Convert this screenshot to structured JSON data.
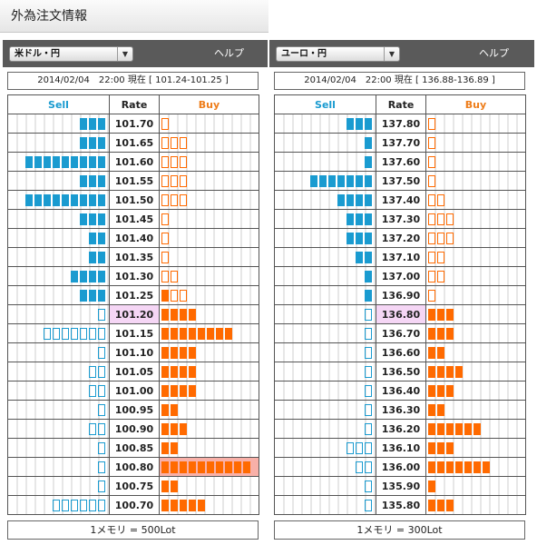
{
  "page_title": "外為注文情報",
  "panels": [
    {
      "pair": "米ドル・円",
      "help": "ヘルプ",
      "status": "2014/02/04　22:00 現在 [ 101.24-101.25 ]",
      "headers": {
        "sell": "Sell",
        "rate": "Rate",
        "buy": "Buy"
      },
      "rows": [
        {
          "rate": "101.70",
          "sell": 3,
          "sell_type": "filled",
          "buy": 1,
          "buy_type": "empty"
        },
        {
          "rate": "101.65",
          "sell": 3,
          "sell_type": "filled",
          "buy": 3,
          "buy_type": "empty"
        },
        {
          "rate": "101.60",
          "sell": 9,
          "sell_type": "filled",
          "buy": 3,
          "buy_type": "empty"
        },
        {
          "rate": "101.55",
          "sell": 3,
          "sell_type": "filled",
          "buy": 3,
          "buy_type": "empty"
        },
        {
          "rate": "101.50",
          "sell": 9,
          "sell_type": "filled",
          "buy": 3,
          "buy_type": "empty"
        },
        {
          "rate": "101.45",
          "sell": 3,
          "sell_type": "filled",
          "buy": 1,
          "buy_type": "empty"
        },
        {
          "rate": "101.40",
          "sell": 2,
          "sell_type": "filled",
          "buy": 1,
          "buy_type": "empty"
        },
        {
          "rate": "101.35",
          "sell": 2,
          "sell_type": "filled",
          "buy": 1,
          "buy_type": "empty"
        },
        {
          "rate": "101.30",
          "sell": 4,
          "sell_type": "filled",
          "buy": 2,
          "buy_type": "empty"
        },
        {
          "rate": "101.25",
          "sell": 3,
          "sell_type": "filled",
          "buy": 3,
          "buy_type": "mixed",
          "buy_filled": 1
        },
        {
          "rate": "101.20",
          "sell": 1,
          "sell_type": "empty",
          "buy": 4,
          "buy_type": "filled",
          "current": true
        },
        {
          "rate": "101.15",
          "sell": 7,
          "sell_type": "empty",
          "buy": 8,
          "buy_type": "filled"
        },
        {
          "rate": "101.10",
          "sell": 1,
          "sell_type": "empty",
          "buy": 4,
          "buy_type": "filled"
        },
        {
          "rate": "101.05",
          "sell": 2,
          "sell_type": "empty",
          "buy": 4,
          "buy_type": "filled"
        },
        {
          "rate": "101.00",
          "sell": 2,
          "sell_type": "empty",
          "buy": 4,
          "buy_type": "filled"
        },
        {
          "rate": "100.95",
          "sell": 1,
          "sell_type": "empty",
          "buy": 2,
          "buy_type": "filled"
        },
        {
          "rate": "100.90",
          "sell": 2,
          "sell_type": "empty",
          "buy": 3,
          "buy_type": "filled"
        },
        {
          "rate": "100.85",
          "sell": 1,
          "sell_type": "empty",
          "buy": 2,
          "buy_type": "filled"
        },
        {
          "rate": "100.80",
          "sell": 1,
          "sell_type": "empty",
          "buy": 10,
          "buy_type": "filled",
          "max_buy": true
        },
        {
          "rate": "100.75",
          "sell": 1,
          "sell_type": "empty",
          "buy": 2,
          "buy_type": "filled"
        },
        {
          "rate": "100.70",
          "sell": 6,
          "sell_type": "empty",
          "buy": 5,
          "buy_type": "filled"
        }
      ],
      "footer": "1メモリ = 500Lot"
    },
    {
      "pair": "ユーロ・円",
      "help": "ヘルプ",
      "status": "2014/02/04　22:00 現在 [ 136.88-136.89 ]",
      "headers": {
        "sell": "Sell",
        "rate": "Rate",
        "buy": "Buy"
      },
      "rows": [
        {
          "rate": "137.80",
          "sell": 3,
          "sell_type": "filled",
          "buy": 1,
          "buy_type": "empty"
        },
        {
          "rate": "137.70",
          "sell": 1,
          "sell_type": "filled",
          "buy": 1,
          "buy_type": "empty"
        },
        {
          "rate": "137.60",
          "sell": 1,
          "sell_type": "filled",
          "buy": 1,
          "buy_type": "empty"
        },
        {
          "rate": "137.50",
          "sell": 7,
          "sell_type": "filled",
          "buy": 1,
          "buy_type": "empty"
        },
        {
          "rate": "137.40",
          "sell": 4,
          "sell_type": "filled",
          "buy": 2,
          "buy_type": "empty"
        },
        {
          "rate": "137.30",
          "sell": 3,
          "sell_type": "filled",
          "buy": 3,
          "buy_type": "empty"
        },
        {
          "rate": "137.20",
          "sell": 3,
          "sell_type": "filled",
          "buy": 3,
          "buy_type": "empty"
        },
        {
          "rate": "137.10",
          "sell": 2,
          "sell_type": "filled",
          "buy": 2,
          "buy_type": "empty"
        },
        {
          "rate": "137.00",
          "sell": 1,
          "sell_type": "filled",
          "buy": 2,
          "buy_type": "empty"
        },
        {
          "rate": "136.90",
          "sell": 1,
          "sell_type": "filled",
          "buy": 1,
          "buy_type": "empty"
        },
        {
          "rate": "136.80",
          "sell": 1,
          "sell_type": "empty",
          "buy": 3,
          "buy_type": "filled",
          "current": true
        },
        {
          "rate": "136.70",
          "sell": 1,
          "sell_type": "empty",
          "buy": 3,
          "buy_type": "filled"
        },
        {
          "rate": "136.60",
          "sell": 1,
          "sell_type": "empty",
          "buy": 2,
          "buy_type": "filled"
        },
        {
          "rate": "136.50",
          "sell": 1,
          "sell_type": "empty",
          "buy": 4,
          "buy_type": "filled"
        },
        {
          "rate": "136.40",
          "sell": 1,
          "sell_type": "empty",
          "buy": 3,
          "buy_type": "filled"
        },
        {
          "rate": "136.30",
          "sell": 1,
          "sell_type": "empty",
          "buy": 2,
          "buy_type": "filled"
        },
        {
          "rate": "136.20",
          "sell": 1,
          "sell_type": "empty",
          "buy": 6,
          "buy_type": "filled"
        },
        {
          "rate": "136.10",
          "sell": 3,
          "sell_type": "empty",
          "buy": 3,
          "buy_type": "filled"
        },
        {
          "rate": "136.00",
          "sell": 2,
          "sell_type": "empty",
          "buy": 7,
          "buy_type": "filled"
        },
        {
          "rate": "135.90",
          "sell": 1,
          "sell_type": "empty",
          "buy": 1,
          "buy_type": "filled"
        },
        {
          "rate": "135.80",
          "sell": 1,
          "sell_type": "empty",
          "buy": 3,
          "buy_type": "filled"
        }
      ],
      "footer": "1メモリ = 300Lot"
    }
  ]
}
